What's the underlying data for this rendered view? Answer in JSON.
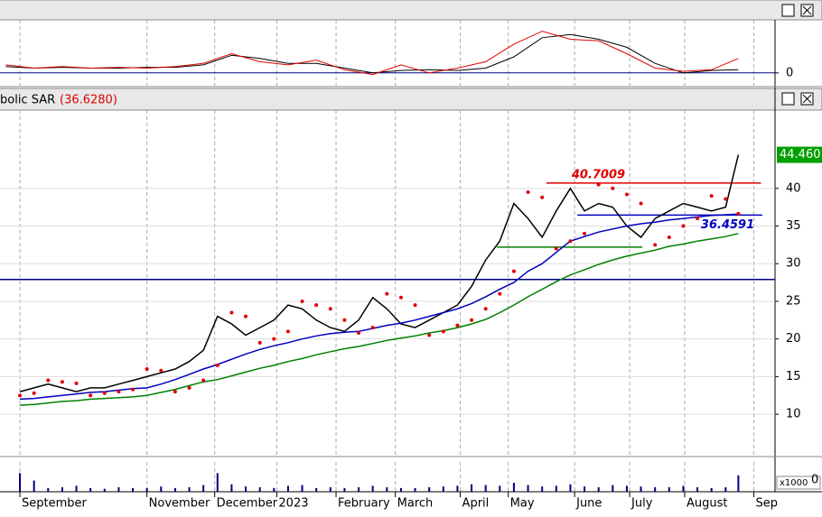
{
  "chart_data": [
    {
      "type": "line",
      "xlim": [
        -1.41,
        53.5
      ],
      "ylim": [
        -0.8,
        3.2
      ],
      "yticks": [
        0
      ],
      "x": [
        -1,
        1,
        3,
        5,
        7,
        9,
        11,
        13,
        15,
        17,
        19,
        21,
        23,
        25,
        27,
        29,
        31,
        33,
        35,
        37,
        39,
        41,
        43,
        45,
        47,
        49,
        50.9
      ],
      "series": [
        {
          "color": "#000000",
          "values": [
            0.4,
            0.3,
            0.35,
            0.3,
            0.3,
            0.35,
            0.35,
            0.5,
            1.1,
            0.9,
            0.6,
            0.6,
            0.3,
            0.0,
            0.15,
            0.2,
            0.15,
            0.3,
            1.0,
            2.2,
            2.4,
            2.1,
            1.6,
            0.6,
            0.0,
            0.15,
            0.2
          ]
        },
        {
          "color": "#e00000",
          "values": [
            0.5,
            0.3,
            0.4,
            0.3,
            0.35,
            0.3,
            0.4,
            0.6,
            1.2,
            0.7,
            0.5,
            0.8,
            0.2,
            -0.1,
            0.5,
            0.0,
            0.3,
            0.7,
            1.8,
            2.6,
            2.1,
            2.0,
            1.2,
            0.3,
            0.1,
            0.2,
            0.9
          ]
        }
      ]
    },
    {
      "type": "line",
      "indicator_label": "bolic SAR",
      "indicator_value_label": "(36.6280)",
      "xlim": [
        -1.41,
        53.5
      ],
      "ylim": [
        4.5,
        50.4
      ],
      "yticks": [
        10,
        15,
        20,
        25,
        30,
        35,
        40
      ],
      "xticks": [
        {
          "value": 0,
          "label": "September"
        },
        {
          "value": 9,
          "label": "November"
        },
        {
          "value": 13.8,
          "label": "December"
        },
        {
          "value": 18.2,
          "label": "2023"
        },
        {
          "value": 22.4,
          "label": "February"
        },
        {
          "value": 26.6,
          "label": "March"
        },
        {
          "value": 31.2,
          "label": "April"
        },
        {
          "value": 34.6,
          "label": "May"
        },
        {
          "value": 39.3,
          "label": "June"
        },
        {
          "value": 43.2,
          "label": "July"
        },
        {
          "value": 47.1,
          "label": "August"
        },
        {
          "value": 52,
          "label": "Sep"
        }
      ],
      "x": [
        0,
        1,
        2,
        3,
        4,
        5,
        6,
        7,
        8,
        9,
        10,
        11,
        12,
        13,
        14,
        15,
        16,
        17,
        18,
        19,
        20,
        21,
        22,
        23,
        24,
        25,
        26,
        27,
        28,
        29,
        30,
        31,
        32,
        33,
        34,
        35,
        36,
        37,
        38,
        39,
        40,
        41,
        42,
        43,
        44,
        45,
        46,
        47,
        48,
        49,
        50,
        50.9
      ],
      "series": [
        {
          "color": "#000000",
          "marker": "line",
          "values": [
            13,
            13.5,
            14,
            13.5,
            13,
            13.5,
            13.5,
            14,
            14.5,
            15,
            15.5,
            16,
            17,
            18.5,
            23,
            22,
            20.5,
            21.5,
            22.5,
            24.5,
            24,
            22.5,
            21.5,
            21,
            22.5,
            25.5,
            24,
            22,
            21.5,
            22.5,
            23.5,
            24.5,
            27,
            30.5,
            33,
            38,
            36,
            33.5,
            37,
            40,
            37,
            38,
            37.5,
            35,
            33.5,
            36,
            37,
            38,
            37.5,
            37,
            37.5,
            44.46
          ]
        },
        {
          "color": "#0000c0",
          "marker": "line",
          "values": [
            12,
            12.1,
            12.3,
            12.5,
            12.7,
            12.9,
            13,
            13.2,
            13.4,
            13.5,
            14,
            14.6,
            15.3,
            16,
            16.6,
            17.3,
            18,
            18.6,
            19.1,
            19.5,
            20,
            20.4,
            20.7,
            20.9,
            21,
            21.4,
            21.8,
            22.1,
            22.5,
            23,
            23.5,
            24,
            24.7,
            25.6,
            26.6,
            27.5,
            29,
            30,
            31.5,
            33,
            33.6,
            34.2,
            34.6,
            35,
            35.3,
            35.5,
            35.8,
            36,
            36.2,
            36.4,
            36.5,
            36.6
          ]
        },
        {
          "color": "#008000",
          "marker": "line",
          "values": [
            11.2,
            11.3,
            11.5,
            11.7,
            11.8,
            12,
            12.1,
            12.2,
            12.3,
            12.5,
            12.9,
            13.3,
            13.8,
            14.3,
            14.6,
            15.1,
            15.6,
            16.1,
            16.5,
            17,
            17.4,
            17.9,
            18.3,
            18.7,
            19,
            19.4,
            19.8,
            20.1,
            20.4,
            20.8,
            21.1,
            21.5,
            22,
            22.6,
            23.5,
            24.5,
            25.6,
            26.6,
            27.6,
            28.5,
            29.2,
            29.9,
            30.5,
            31,
            31.4,
            31.8,
            32.3,
            32.6,
            33,
            33.3,
            33.6,
            34
          ]
        },
        {
          "color": "#e00000",
          "marker": "dots",
          "values": [
            12.5,
            12.8,
            14.5,
            14.3,
            14.1,
            12.5,
            12.8,
            13,
            13.3,
            16,
            15.8,
            13,
            13.5,
            14.5,
            16.5,
            23.5,
            23,
            19.5,
            20,
            21,
            25,
            24.5,
            24,
            22.5,
            20.8,
            21.5,
            26,
            25.5,
            24.5,
            20.5,
            21,
            21.8,
            22.5,
            24,
            26,
            29,
            39.5,
            38.8,
            32,
            33,
            34,
            40.5,
            40,
            39.2,
            38,
            32.5,
            33.5,
            35,
            36,
            39,
            38.6,
            36.628
          ]
        }
      ],
      "hlines": [
        {
          "value": 27.9,
          "color": "#000080",
          "x_range": [
            -1.41,
            53.5
          ]
        },
        {
          "value": 40.7009,
          "label": "40.7009",
          "color": "#e00000",
          "x_range": [
            37.3,
            52.5
          ]
        },
        {
          "value": 36.4591,
          "label": "36.4591",
          "color": "#0000c0",
          "x_range": [
            39.5,
            52.6
          ]
        },
        {
          "value": 32.2,
          "color": "#008000",
          "x_range": [
            33.8,
            44.1
          ]
        }
      ],
      "price_tag": {
        "value": 44.46,
        "label": "44.460",
        "color": "#00a000"
      }
    },
    {
      "type": "bar",
      "unit_label": "x1000",
      "xlim": [
        -1.41,
        53.5
      ],
      "ylim": [
        0,
        40
      ],
      "yticks": [
        0
      ],
      "color": "#000080",
      "x": [
        0,
        1,
        2,
        3,
        4,
        5,
        6,
        7,
        8,
        9,
        10,
        11,
        12,
        13,
        14,
        15,
        16,
        17,
        18,
        19,
        20,
        21,
        22,
        23,
        24,
        25,
        26,
        27,
        28,
        29,
        30,
        31,
        32,
        33,
        34,
        35,
        36,
        37,
        38,
        39,
        40,
        41,
        42,
        43,
        44,
        45,
        46,
        47,
        48,
        49,
        50,
        50.9
      ],
      "values": [
        25,
        15,
        5,
        6,
        8,
        5,
        4,
        6,
        5,
        5,
        7,
        5,
        6,
        9,
        25,
        10,
        7,
        6,
        5,
        8,
        9,
        5,
        6,
        5,
        6,
        8,
        6,
        5,
        5,
        6,
        7,
        8,
        10,
        9,
        8,
        12,
        9,
        7,
        8,
        10,
        7,
        6,
        9,
        8,
        7,
        6,
        6,
        8,
        6,
        5,
        6,
        22
      ]
    }
  ]
}
